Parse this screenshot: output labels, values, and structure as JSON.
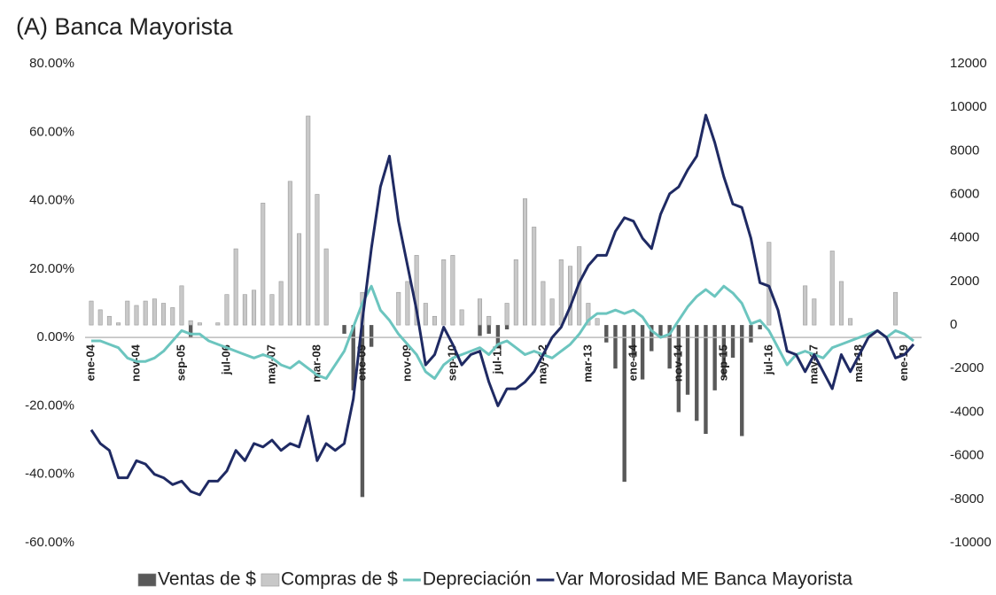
{
  "chart_data": {
    "type": "bar-line",
    "title": "(A) Banca Mayorista",
    "categories": [
      "ene-04",
      null,
      null,
      null,
      null,
      "nov-04",
      null,
      null,
      null,
      null,
      "sep-05",
      null,
      null,
      null,
      null,
      "jul-06",
      null,
      null,
      null,
      null,
      "may-07",
      null,
      null,
      null,
      null,
      "mar-08",
      null,
      null,
      null,
      null,
      "ene-09",
      null,
      null,
      null,
      null,
      "nov-09",
      null,
      null,
      null,
      null,
      "sep-10",
      null,
      null,
      null,
      null,
      "jul-11",
      null,
      null,
      null,
      null,
      "may-12",
      null,
      null,
      null,
      null,
      "mar-13",
      null,
      null,
      null,
      null,
      "ene-14",
      null,
      null,
      null,
      null,
      "nov-14",
      null,
      null,
      null,
      null,
      "sep-15",
      null,
      null,
      null,
      null,
      "jul-16",
      null,
      null,
      null,
      null,
      "may-17",
      null,
      null,
      null,
      null,
      "mar-18",
      null,
      null,
      null,
      null,
      "ene-19",
      null
    ],
    "series": [
      {
        "name": "Ventas de $",
        "kind": "bar",
        "axis": "y2",
        "color": "#595959",
        "values": [
          0,
          0,
          0,
          0,
          0,
          0,
          0,
          0,
          0,
          0,
          0,
          -600,
          0,
          0,
          0,
          0,
          0,
          0,
          0,
          0,
          0,
          0,
          0,
          0,
          0,
          0,
          0,
          0,
          -400,
          -3000,
          -7900,
          -1000,
          0,
          0,
          0,
          0,
          0,
          0,
          0,
          0,
          0,
          0,
          0,
          -500,
          -400,
          -1000,
          -200,
          0,
          0,
          0,
          0,
          0,
          0,
          0,
          0,
          0,
          0,
          -800,
          -2000,
          -7200,
          -1500,
          -2500,
          -1200,
          -500,
          -2000,
          -4000,
          -3200,
          -4400,
          -5000,
          -3000,
          -2400,
          -1500,
          -5100,
          -800,
          -200,
          0,
          0,
          0,
          0,
          0,
          0,
          0,
          0,
          0,
          0,
          0,
          0,
          0,
          0,
          0,
          0,
          0
        ]
      },
      {
        "name": "Compras de $",
        "kind": "bar",
        "axis": "y2",
        "color": "#c8c8c8",
        "values": [
          1100,
          700,
          400,
          100,
          1100,
          900,
          1100,
          1200,
          1000,
          800,
          1800,
          200,
          100,
          0,
          100,
          1400,
          3500,
          1400,
          1600,
          5600,
          1400,
          2000,
          6600,
          4200,
          9600,
          6000,
          3500,
          0,
          0,
          0,
          1500,
          0,
          0,
          0,
          1500,
          2000,
          3200,
          1000,
          400,
          3000,
          3200,
          700,
          0,
          1200,
          400,
          0,
          1000,
          3000,
          5800,
          4500,
          2000,
          1200,
          3000,
          2700,
          3600,
          1000,
          300,
          0,
          0,
          0,
          0,
          0,
          0,
          0,
          0,
          0,
          0,
          0,
          0,
          0,
          0,
          0,
          0,
          0,
          0,
          3800,
          0,
          0,
          0,
          1800,
          1200,
          0,
          3400,
          2000,
          300,
          0,
          0,
          0,
          0,
          1500,
          0,
          0
        ]
      },
      {
        "name": "Depreciación",
        "kind": "line",
        "axis": "y",
        "color": "#6cc5bf",
        "values": [
          -1,
          -1,
          -2,
          -3,
          -6,
          -7,
          -7,
          -6,
          -4,
          -1,
          2,
          1,
          1,
          -1,
          -2,
          -3,
          -4,
          -5,
          -6,
          -5,
          -6,
          -8,
          -9,
          -7,
          -9,
          -11,
          -12,
          -8,
          -4,
          3,
          10,
          15,
          8,
          5,
          1,
          -2,
          -5,
          -10,
          -12,
          -8,
          -6,
          -5,
          -4,
          -3,
          -5,
          -2,
          -1,
          -3,
          -5,
          -4,
          -5,
          -6,
          -4,
          -2,
          1,
          5,
          7,
          7,
          8,
          7,
          8,
          6,
          2,
          0,
          1,
          5,
          9,
          12,
          14,
          12,
          15,
          13,
          10,
          4,
          5,
          2,
          -3,
          -8,
          -5,
          -4,
          -5,
          -6,
          -3,
          -2,
          -1,
          0,
          1,
          2,
          0,
          2,
          1,
          -1
        ]
      },
      {
        "name": "Var Morosidad ME Banca Mayorista",
        "kind": "line",
        "axis": "y",
        "color": "#1f2a63",
        "values": [
          -27,
          -31,
          -33,
          -41,
          -41,
          -36,
          -37,
          -40,
          -41,
          -43,
          -42,
          -45,
          -46,
          -42,
          -42,
          -39,
          -33,
          -36,
          -31,
          -32,
          -30,
          -33,
          -31,
          -32,
          -23,
          -36,
          -31,
          -33,
          -31,
          -18,
          5,
          26,
          44,
          53,
          34,
          21,
          8,
          -8,
          -5,
          3,
          -2,
          -8,
          -5,
          -4,
          -13,
          -20,
          -15,
          -15,
          -13,
          -10,
          -5,
          0,
          3,
          9,
          16,
          21,
          24,
          24,
          31,
          35,
          34,
          29,
          26,
          36,
          42,
          44,
          49,
          53,
          65,
          57,
          47,
          39,
          38,
          29,
          16,
          15,
          8,
          -4,
          -5,
          -10,
          -5,
          -10,
          -15,
          -5,
          -10,
          -5,
          0,
          2,
          0,
          -6,
          -5,
          -2
        ]
      }
    ],
    "ylim": [
      -60,
      80
    ],
    "yticks": [
      {
        "value": -60,
        "label": "-60.00%"
      },
      {
        "value": -40,
        "label": "-40.00%"
      },
      {
        "value": -20,
        "label": "-20.00%"
      },
      {
        "value": 0,
        "label": "0.00%"
      },
      {
        "value": 20,
        "label": "20.00%"
      },
      {
        "value": 40,
        "label": "40.00%"
      },
      {
        "value": 60,
        "label": "60.00%"
      },
      {
        "value": 80,
        "label": "80.00%"
      }
    ],
    "y2lim": [
      -10000,
      12000
    ],
    "y2ticks": [
      -10000,
      -8000,
      -6000,
      -4000,
      -2000,
      0,
      2000,
      4000,
      6000,
      8000,
      10000,
      12000
    ],
    "legend": "bottom",
    "grid": false
  }
}
